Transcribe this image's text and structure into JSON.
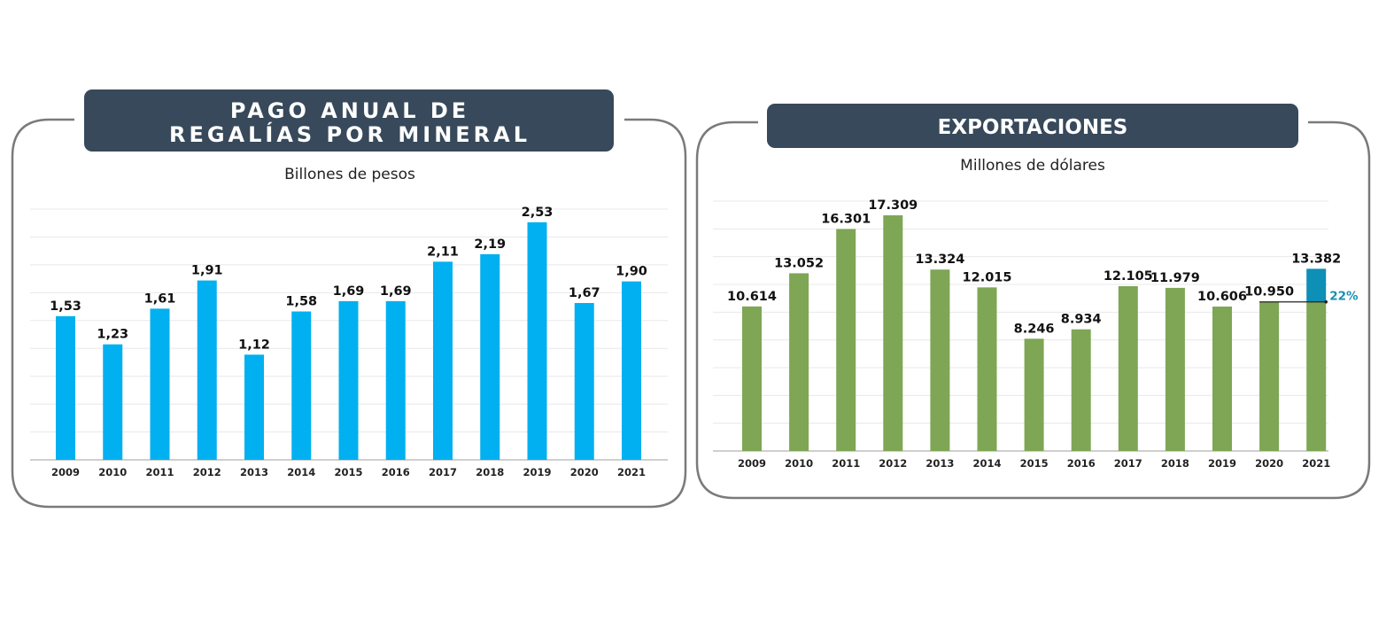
{
  "chart_data": [
    {
      "type": "bar",
      "title": "PAGO ANUAL DE REGALÍAS POR MINERAL",
      "title_lines": [
        "PAGO ANUAL DE",
        "REGALÍAS POR MINERAL"
      ],
      "subtitle": "Billones de pesos",
      "categories": [
        "2009",
        "2010",
        "2011",
        "2012",
        "2013",
        "2014",
        "2015",
        "2016",
        "2017",
        "2018",
        "2019",
        "2020",
        "2021"
      ],
      "values": [
        1.53,
        1.23,
        1.61,
        1.91,
        1.12,
        1.58,
        1.69,
        1.69,
        2.11,
        2.19,
        2.53,
        1.67,
        1.9
      ],
      "data_labels": [
        "1,53",
        "1,23",
        "1,61",
        "1,91",
        "1,12",
        "1,58",
        "1,69",
        "1,69",
        "2,11",
        "2,19",
        "2,53",
        "1,67",
        "1,90"
      ],
      "ylim": [
        0,
        2.67
      ],
      "grid": true,
      "bar_color": "#00b0f0",
      "title_bg": "#37495a"
    },
    {
      "type": "bar",
      "title": "EXPORTACIONES",
      "subtitle": "Millones de dólares",
      "categories": [
        "2009",
        "2010",
        "2011",
        "2012",
        "2013",
        "2014",
        "2015",
        "2016",
        "2017",
        "2018",
        "2019",
        "2020",
        "2021"
      ],
      "values": [
        10614,
        13052,
        16301,
        17309,
        13324,
        12015,
        8246,
        8934,
        12105,
        11979,
        10606,
        10950,
        13382
      ],
      "data_labels": [
        "10.614",
        "13.052",
        "16.301",
        "17.309",
        "13.324",
        "12.015",
        "8.246",
        "8.934",
        "12.105",
        "11.979",
        "10.606",
        "10.950",
        "13.382"
      ],
      "ylim": [
        0,
        18350
      ],
      "grid": true,
      "bar_color": "#7ea655",
      "highlight_color": "#0e8fb5",
      "annotation": {
        "label": "22%",
        "from_category": "2020",
        "to_category": "2021",
        "color": "#1a8fb3"
      },
      "title_bg": "#37495a"
    }
  ]
}
